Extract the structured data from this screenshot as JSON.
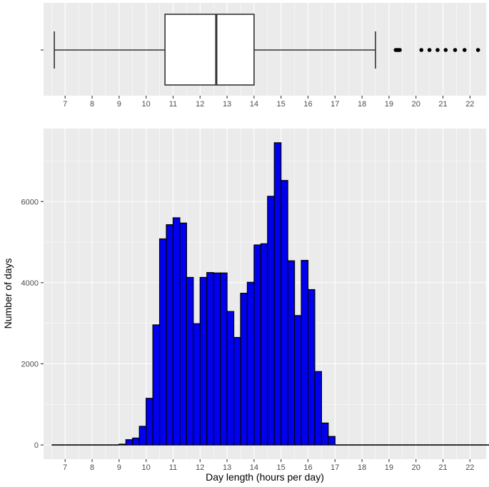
{
  "chart_data": [
    {
      "type": "boxplot",
      "x_ticks": [
        7,
        8,
        9,
        10,
        11,
        12,
        13,
        14,
        15,
        16,
        17,
        18,
        19,
        20,
        21,
        22
      ],
      "x_range": [
        6.2,
        22.6
      ],
      "box": {
        "whisker_low": 6.6,
        "q1": 10.7,
        "median": 12.6,
        "q3": 14.0,
        "whisker_high": 18.5
      },
      "outliers": [
        19.25,
        19.3,
        19.35,
        19.4,
        20.2,
        20.5,
        20.8,
        21.1,
        21.45,
        21.8,
        22.3
      ],
      "grid": true
    },
    {
      "type": "histogram",
      "xlabel": "Day length (hours per day)",
      "ylabel": "Number of days",
      "x_ticks": [
        7,
        8,
        9,
        10,
        11,
        12,
        13,
        14,
        15,
        16,
        17,
        18,
        19,
        20,
        21,
        22
      ],
      "y_ticks": [
        0,
        2000,
        4000,
        6000
      ],
      "x_range": [
        6.2,
        22.6
      ],
      "y_range": [
        -350,
        7800
      ],
      "bin_width": 0.25,
      "bins_start": 6.5,
      "counts": [
        0,
        0,
        0,
        0,
        0,
        0,
        0,
        0,
        0,
        0,
        20,
        130,
        170,
        460,
        1150,
        2960,
        5080,
        5430,
        5600,
        5470,
        4130,
        2990,
        4130,
        4250,
        4240,
        4240,
        3290,
        2650,
        3740,
        4010,
        4930,
        4960,
        6130,
        7450,
        6520,
        4540,
        3190,
        4550,
        3830,
        1810,
        540,
        210,
        0,
        0,
        0,
        0,
        0,
        0,
        0,
        0,
        0,
        0,
        0,
        0,
        0,
        0,
        0,
        0,
        0,
        0,
        0,
        0,
        0,
        0,
        0,
        0
      ],
      "bar_color": "#0000EE",
      "grid": true
    }
  ]
}
